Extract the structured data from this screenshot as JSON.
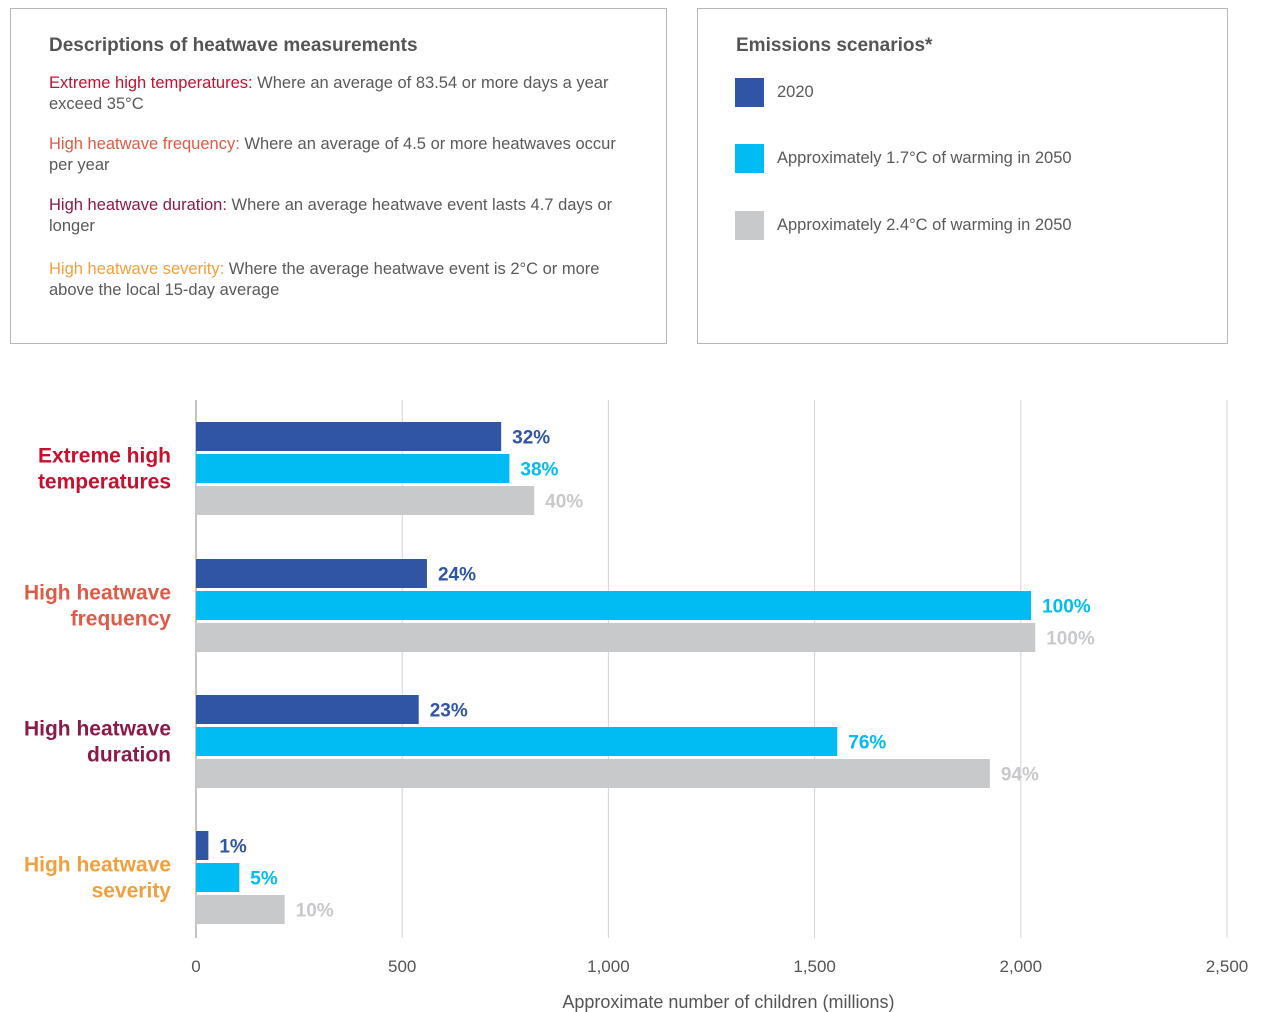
{
  "descriptions": {
    "title": "Descriptions of heatwave measurements",
    "items": [
      {
        "term": "Extreme high temperatures:",
        "text": " Where an average of 83.54 or more days a year exceed 35°C",
        "color": "#c8102e"
      },
      {
        "term": "High heatwave frequency:",
        "text": " Where an average of 4.5 or more heatwaves occur per year",
        "color": "#e05a47"
      },
      {
        "term": "High heatwave duration:",
        "text": " Where an average heatwave event lasts 4.7 days or longer",
        "color": "#8b1a4a"
      },
      {
        "term": "High heatwave severity:",
        "text": " Where the average heatwave event is 2°C or more above the local 15-day average",
        "color": "#f2a03d"
      }
    ]
  },
  "legend": {
    "title": "Emissions scenarios*",
    "items": [
      {
        "label": "2020",
        "color": "#2f55a4"
      },
      {
        "label": "Approximately 1.7°C of warming in 2050",
        "color": "#00bcf2"
      },
      {
        "label": "Approximately 2.4°C of warming in 2050",
        "color": "#c8c9cb"
      }
    ]
  },
  "chart_data": {
    "type": "bar",
    "orientation": "horizontal",
    "categories": [
      {
        "lines": [
          "Extreme high",
          "temperatures"
        ],
        "color": "#c8102e"
      },
      {
        "lines": [
          "High heatwave",
          "frequency"
        ],
        "color": "#e05a47"
      },
      {
        "lines": [
          "High heatwave",
          "duration"
        ],
        "color": "#8b1a4a"
      },
      {
        "lines": [
          "High heatwave",
          "severity"
        ],
        "color": "#f2a03d"
      }
    ],
    "series": [
      {
        "name": "2020",
        "color": "#2f55a4",
        "values": [
          740,
          560,
          540,
          30
        ],
        "labels": [
          "32%",
          "24%",
          "23%",
          "1%"
        ]
      },
      {
        "name": "Approximately 1.7°C of warming in 2050",
        "color": "#00bcf2",
        "values": [
          760,
          2025,
          1555,
          105
        ],
        "labels": [
          "38%",
          "100%",
          "76%",
          "5%"
        ]
      },
      {
        "name": "Approximately 2.4°C of warming in 2050",
        "color": "#c8c9cb",
        "values": [
          820,
          2035,
          1925,
          215
        ],
        "labels": [
          "40%",
          "100%",
          "94%",
          "10%"
        ]
      }
    ],
    "xlim": [
      0,
      2500
    ],
    "xticks": [
      0,
      500,
      1000,
      1500,
      2000,
      2500
    ],
    "xtick_labels": [
      "0",
      "500",
      "1,000",
      "1,500",
      "2,000",
      "2,500"
    ],
    "xlabel": "Approximate number of children (millions)",
    "grid": "vertical"
  }
}
